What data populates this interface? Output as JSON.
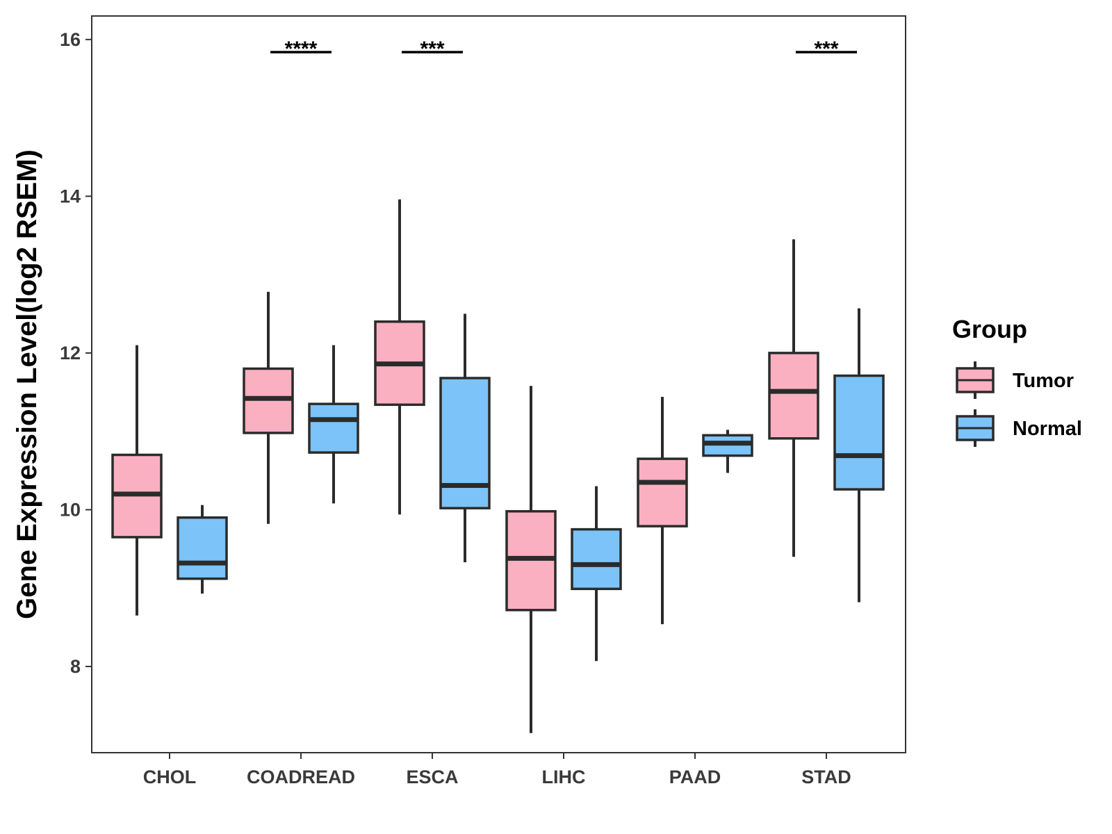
{
  "chart_data": {
    "type": "boxplot",
    "title": "",
    "xlabel": "",
    "ylabel": "Gene Expression Level(log2 RSEM)",
    "ylim": [
      6.9,
      16.3
    ],
    "yticks": [
      8,
      10,
      12,
      14,
      16
    ],
    "categories": [
      "CHOL",
      "COADREAD",
      "ESCA",
      "LIHC",
      "PAAD",
      "STAD"
    ],
    "legend": {
      "title": "Group",
      "position": "right"
    },
    "series": [
      {
        "name": "Tumor",
        "color": "#FBB0C1",
        "boxes": [
          {
            "min": 8.65,
            "q1": 9.65,
            "median": 10.2,
            "q3": 10.7,
            "max": 12.1
          },
          {
            "min": 9.82,
            "q1": 10.98,
            "median": 11.42,
            "q3": 11.8,
            "max": 12.78
          },
          {
            "min": 9.94,
            "q1": 11.34,
            "median": 11.86,
            "q3": 12.4,
            "max": 13.96
          },
          {
            "min": 7.15,
            "q1": 8.72,
            "median": 9.38,
            "q3": 9.98,
            "max": 11.58
          },
          {
            "min": 8.54,
            "q1": 9.79,
            "median": 10.35,
            "q3": 10.65,
            "max": 11.44
          },
          {
            "min": 9.4,
            "q1": 10.91,
            "median": 11.51,
            "q3": 12.0,
            "max": 13.45
          }
        ]
      },
      {
        "name": "Normal",
        "color": "#7BC3F8",
        "boxes": [
          {
            "min": 8.93,
            "q1": 9.12,
            "median": 9.32,
            "q3": 9.9,
            "max": 10.06
          },
          {
            "min": 10.08,
            "q1": 10.73,
            "median": 11.15,
            "q3": 11.35,
            "max": 12.1
          },
          {
            "min": 9.33,
            "q1": 10.02,
            "median": 10.31,
            "q3": 11.68,
            "max": 12.5
          },
          {
            "min": 8.07,
            "q1": 8.99,
            "median": 9.3,
            "q3": 9.75,
            "max": 10.3
          },
          {
            "min": 10.47,
            "q1": 10.69,
            "median": 10.85,
            "q3": 10.95,
            "max": 11.02
          },
          {
            "min": 8.82,
            "q1": 10.26,
            "median": 10.69,
            "q3": 11.71,
            "max": 12.57
          }
        ]
      }
    ],
    "significance": [
      {
        "category": "COADREAD",
        "label": "****"
      },
      {
        "category": "ESCA",
        "label": "***"
      },
      {
        "category": "STAD",
        "label": "***"
      }
    ]
  }
}
